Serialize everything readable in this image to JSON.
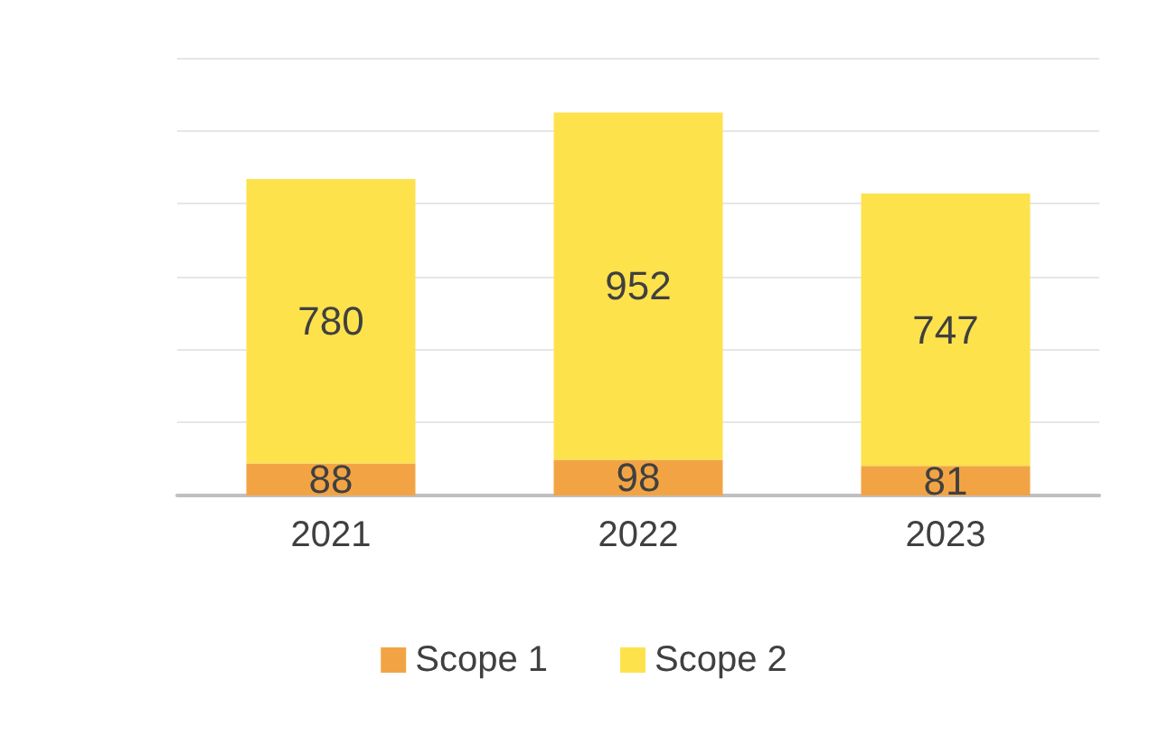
{
  "chart_data": {
    "type": "bar",
    "stacked": true,
    "categories": [
      "2021",
      "2022",
      "2023"
    ],
    "series": [
      {
        "name": "Scope 1",
        "color": "#f2a444",
        "values": [
          88,
          98,
          81
        ]
      },
      {
        "name": "Scope 2",
        "color": "#fde24c",
        "values": [
          780,
          952,
          747
        ]
      }
    ],
    "ylim": [
      0,
      1200
    ],
    "yticks": [
      {
        "value": 0,
        "label": null
      },
      {
        "value": 200,
        "label": null
      },
      {
        "value": 400,
        "label": null
      },
      {
        "value": 600,
        "label": null
      },
      {
        "value": 800,
        "label": null
      },
      {
        "value": 1000,
        "label": null
      },
      {
        "value": 1200,
        "label": null
      }
    ],
    "grid": "y",
    "legend": "bottom",
    "data_labels": true
  }
}
